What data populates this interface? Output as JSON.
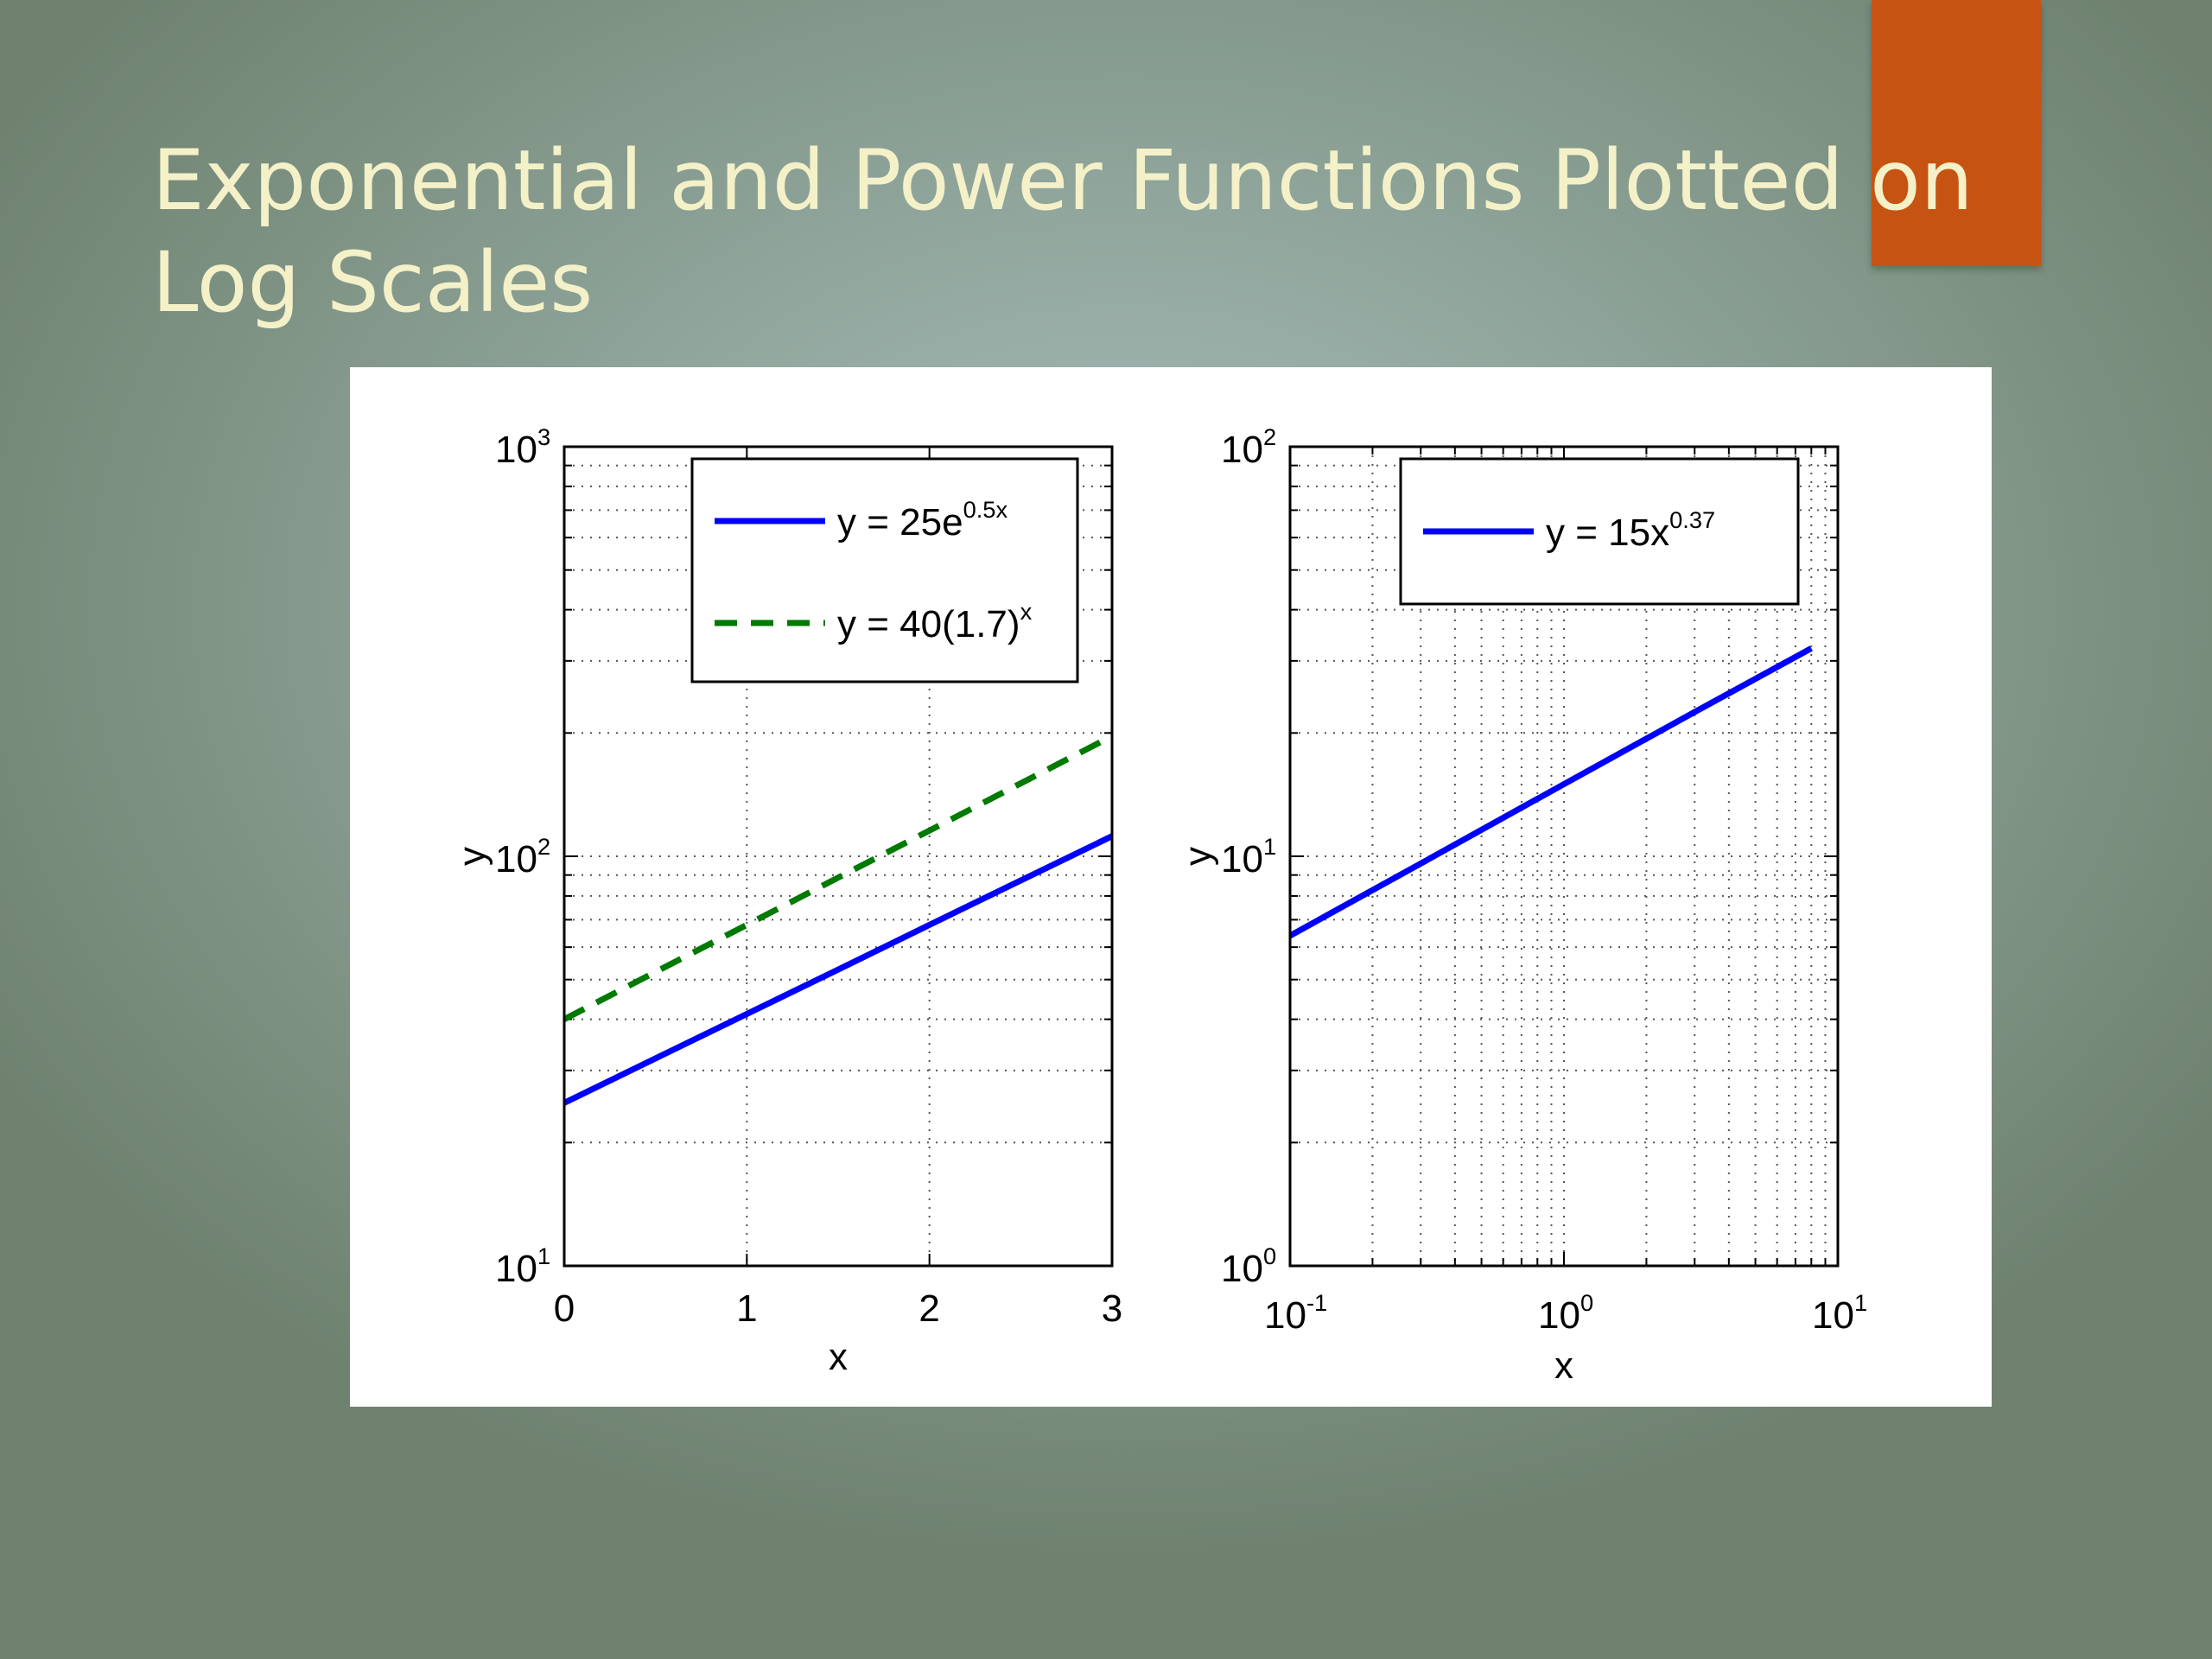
{
  "slide": {
    "title_line1_a": "Exponential and Power Functions Plotted ",
    "title_line1_b": "on",
    "title_line2": "Log Scales",
    "accent_color": "#c75312",
    "title_color": "#f4f1c8"
  },
  "chart_data": [
    {
      "type": "line",
      "xscale": "linear",
      "yscale": "log",
      "xlim": [
        0,
        3
      ],
      "ylim": [
        10,
        1000
      ],
      "xlabel": "x",
      "ylabel": "y",
      "xticks": [
        "0",
        "1",
        "2",
        "3"
      ],
      "yticks": [
        {
          "base": "10",
          "exp": "1"
        },
        {
          "base": "10",
          "exp": "2"
        },
        {
          "base": "10",
          "exp": "3"
        }
      ],
      "grid": true,
      "legend_position": "top-right",
      "series": [
        {
          "name_base": "y = 25e",
          "name_sup": "0.5x",
          "color": "#0000ff",
          "style": "solid",
          "x": [
            0,
            0.5,
            1,
            1.5,
            2,
            2.5,
            3
          ],
          "y": [
            25,
            32.1,
            41.2,
            52.9,
            68.0,
            87.3,
            112.0
          ]
        },
        {
          "name_base": "y = 40(1.7)",
          "name_sup": "x",
          "color": "#007a00",
          "style": "dashed",
          "x": [
            0,
            0.5,
            1,
            1.5,
            2,
            2.5,
            3
          ],
          "y": [
            40,
            52.2,
            68.0,
            88.7,
            115.6,
            150.7,
            196.5
          ]
        }
      ]
    },
    {
      "type": "line",
      "xscale": "log",
      "yscale": "log",
      "xlim": [
        0.1,
        10
      ],
      "ylim": [
        1,
        100
      ],
      "xlabel": "x",
      "ylabel": "y",
      "xticks": [
        {
          "base": "10",
          "exp": "-1"
        },
        {
          "base": "10",
          "exp": "0"
        },
        {
          "base": "10",
          "exp": "1"
        }
      ],
      "yticks": [
        {
          "base": "10",
          "exp": "0"
        },
        {
          "base": "10",
          "exp": "1"
        },
        {
          "base": "10",
          "exp": "2"
        }
      ],
      "grid": true,
      "legend_position": "top-right",
      "series": [
        {
          "name_base": "y = 15x",
          "name_sup": "0.37",
          "color": "#0000ff",
          "style": "solid",
          "x": [
            0.1,
            0.3,
            1,
            3,
            8
          ],
          "y": [
            6.4,
            9.6,
            15,
            22.5,
            32.2
          ]
        }
      ]
    }
  ]
}
